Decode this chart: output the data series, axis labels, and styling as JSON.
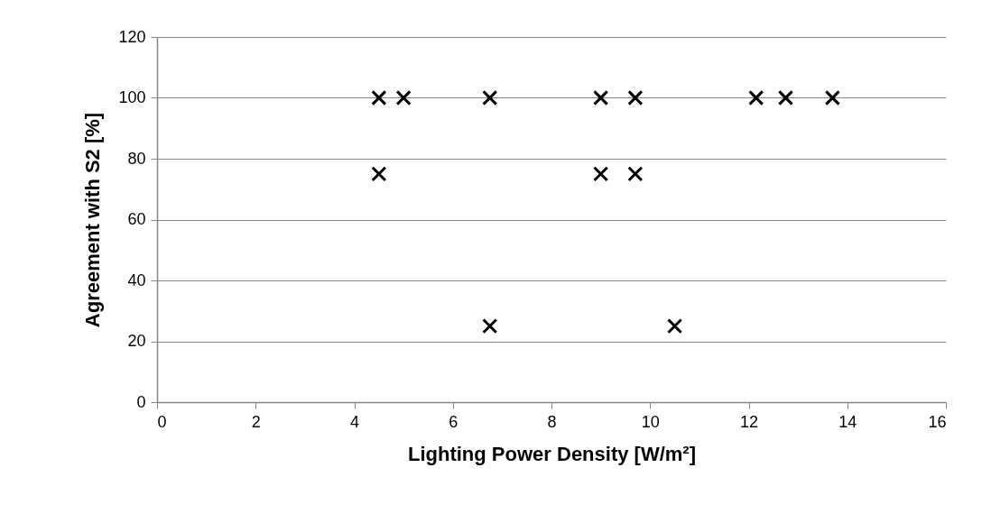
{
  "chart_data": {
    "type": "scatter",
    "xlabel": "Lighting Power Density [W/m²]",
    "ylabel": "Agreement with S2 [%]",
    "x": [
      4.5,
      5.0,
      6.75,
      9.0,
      9.7,
      12.15,
      12.75,
      13.7,
      4.5,
      9.0,
      9.7,
      6.75,
      10.5
    ],
    "series": [
      {
        "color": "#000000",
        "values": [
          100,
          100,
          100,
          100,
          100,
          100,
          100,
          100,
          75,
          75,
          75,
          25,
          25
        ]
      }
    ],
    "xlim": [
      0,
      16
    ],
    "xticks": [
      0,
      2,
      4,
      6,
      8,
      10,
      12,
      14,
      16
    ],
    "ylim": [
      0,
      120
    ],
    "yticks": [
      0,
      20,
      40,
      60,
      80,
      100,
      120
    ],
    "grid": "y",
    "marker": "cross"
  }
}
